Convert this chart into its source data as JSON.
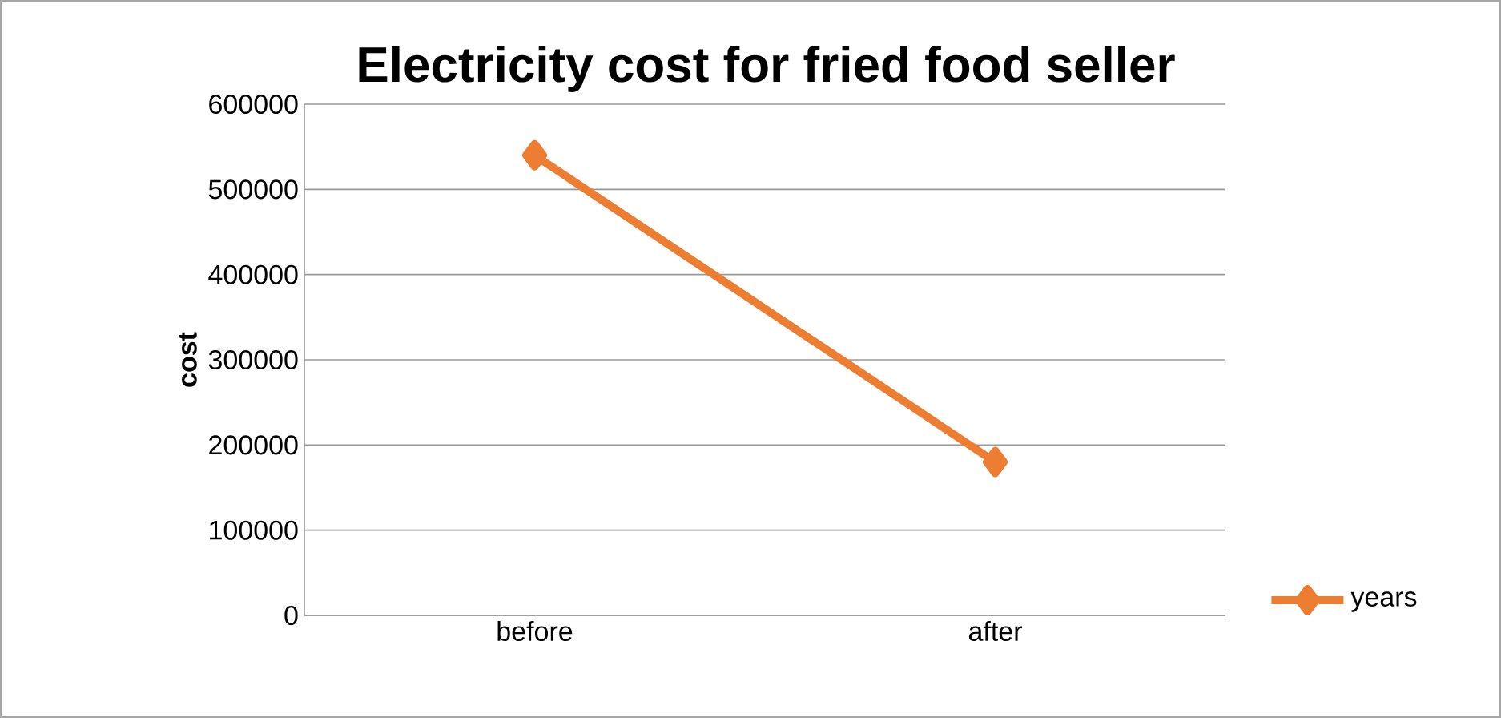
{
  "chart_data": {
    "type": "line",
    "title": "Electricity cost for fried food seller",
    "ylabel": "cost",
    "categories": [
      "before",
      "after"
    ],
    "series": [
      {
        "name": "years",
        "color": "#ed7d31",
        "values": [
          540000,
          180000
        ]
      }
    ],
    "ylim": [
      0,
      600000
    ],
    "yticks": [
      0,
      100000,
      200000,
      300000,
      400000,
      500000,
      600000
    ],
    "grid": "y",
    "legend": "right",
    "marker": "diamond"
  }
}
